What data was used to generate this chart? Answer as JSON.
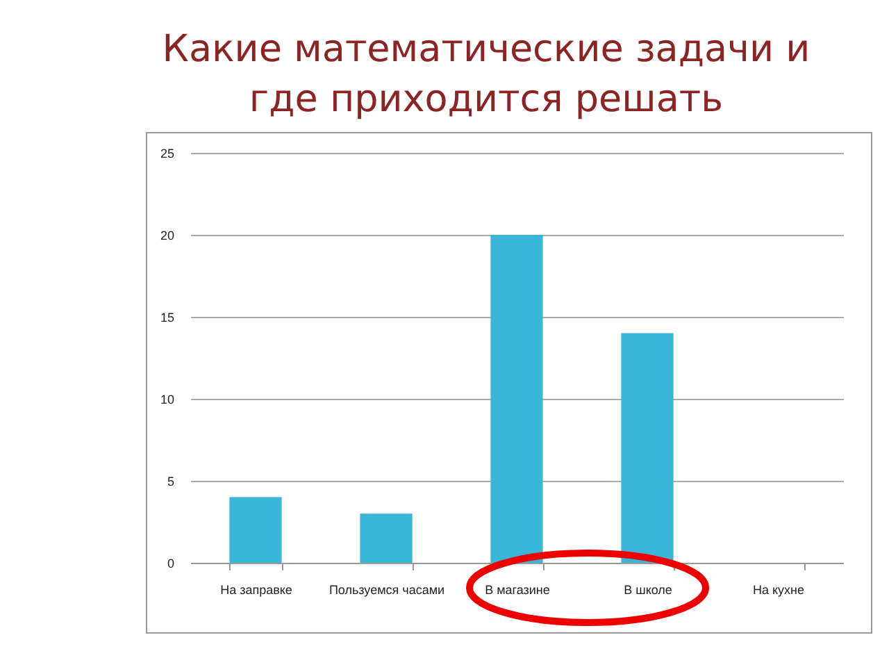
{
  "chart_data": {
    "type": "bar",
    "title": "Какие математические задачи и где приходится решать",
    "categories": [
      "На заправке",
      "Пользуемся часами",
      "В магазине",
      "В школе",
      "На кухне"
    ],
    "values": [
      4,
      3,
      20,
      14,
      0
    ],
    "color": "#3bb5d8",
    "ylim": [
      0,
      25
    ],
    "yticks": [
      0,
      5,
      10,
      15,
      20,
      25
    ],
    "grid": "y"
  }
}
